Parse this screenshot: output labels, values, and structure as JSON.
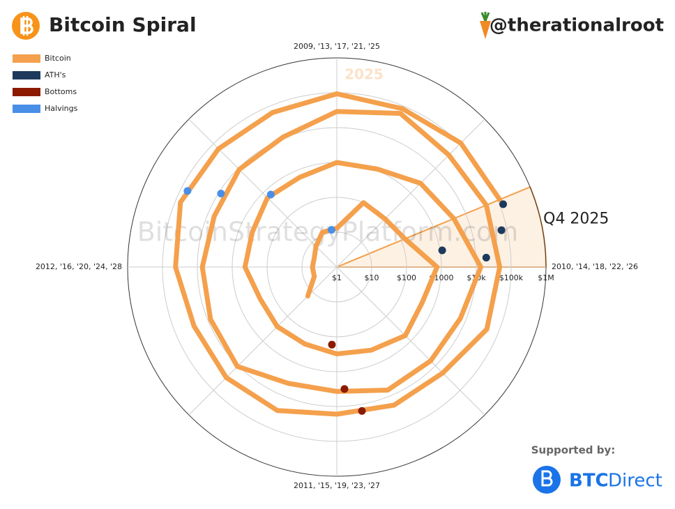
{
  "header": {
    "title": "Bitcoin Spiral",
    "handle": "@therationalroot"
  },
  "chart_data": {
    "type": "polar_spiral",
    "xlim": [
      2009,
      2013
    ],
    "xticks": [
      {
        "value": 2009,
        "label": "2009, '13, '17, '21, '25"
      },
      {
        "value": 2010,
        "label": "2010, '14, '18, '22, '26"
      },
      {
        "value": 2011,
        "label": "2011, '15, '19, '23, '27"
      },
      {
        "value": 2012,
        "label": "2012, '16, '20, '24, '28"
      }
    ],
    "rlim": [
      1,
      1000000
    ],
    "log_scale": true,
    "rticks": [
      {
        "value": 1,
        "label": "$1"
      },
      {
        "value": 10,
        "label": "$10"
      },
      {
        "value": 100,
        "label": "$100"
      },
      {
        "value": 1000,
        "label": "$1000"
      },
      {
        "value": 10000,
        "label": "$10k"
      },
      {
        "value": 100000,
        "label": "$100k"
      },
      {
        "value": 1000000,
        "label": "$1M"
      }
    ],
    "grid": true,
    "legend": "top-left",
    "watermark": "BitcoinStrategyPlatform.com",
    "annotation": "2025",
    "highlight": {
      "label": "Q4 2025",
      "x": [
        2025.75,
        2026
      ],
      "color": "#f4a04c"
    },
    "series": [
      {
        "name": "Bitcoin",
        "color": "#f4a04c",
        "mode": "line",
        "x": [
          2011.5,
          2011.75,
          2012,
          2012.25,
          2012.5,
          2012.75,
          2013,
          2013.25,
          2013.5,
          2013.75,
          2014,
          2014.25,
          2014.5,
          2014.75,
          2015,
          2015.25,
          2015.5,
          2015.75,
          2016,
          2016.25,
          2016.5,
          2016.75,
          2017,
          2017.25,
          2017.5,
          2017.75,
          2018,
          2018.25,
          2018.5,
          2018.75,
          2019,
          2019.25,
          2019.5,
          2019.75,
          2020,
          2020.25,
          2020.5,
          2020.75,
          2021,
          2021.25,
          2021.5,
          2021.75,
          2022,
          2022.25,
          2022.5,
          2022.75,
          2023,
          2023.25,
          2023.5,
          2023.75,
          2024,
          2024.25,
          2024.5,
          2024.75,
          2025,
          2025.25,
          2025.5,
          2025.75
        ],
        "values": [
          15,
          5,
          5,
          5,
          7,
          12,
          13,
          100,
          90,
          130,
          750,
          450,
          600,
          380,
          310,
          245,
          260,
          240,
          430,
          420,
          650,
          610,
          1000,
          1100,
          2500,
          4300,
          13500,
          6900,
          6400,
          6600,
          3700,
          4100,
          10800,
          8300,
          7200,
          6400,
          9100,
          10800,
          29000,
          58800,
          35000,
          43800,
          47000,
          45500,
          19800,
          19400,
          16600,
          28500,
          30500,
          27000,
          42300,
          71300,
          62700,
          63300,
          93400,
          82500,
          107000,
          114000
        ]
      },
      {
        "name": "ATH's",
        "color": "#1d3a5c",
        "mode": "markers",
        "x": [
          2013.9,
          2017.96,
          2021.86,
          2025.77
        ],
        "values": [
          1150,
          19700,
          69000,
          126000
        ]
      },
      {
        "name": "Bottoms",
        "color": "#8b1a00",
        "mode": "markers",
        "x": [
          2015.04,
          2018.96,
          2022.89
        ],
        "values": [
          170,
          3200,
          15500
        ]
      },
      {
        "name": "Halvings",
        "color": "#4a8fe7",
        "mode": "markers",
        "x": [
          2012.91,
          2016.53,
          2020.36,
          2024.3
        ],
        "values": [
          12,
          650,
          8600,
          64000
        ]
      }
    ]
  },
  "footer": {
    "supported": "Supported by:",
    "brand_a": "BTC",
    "brand_b": "Direct"
  }
}
